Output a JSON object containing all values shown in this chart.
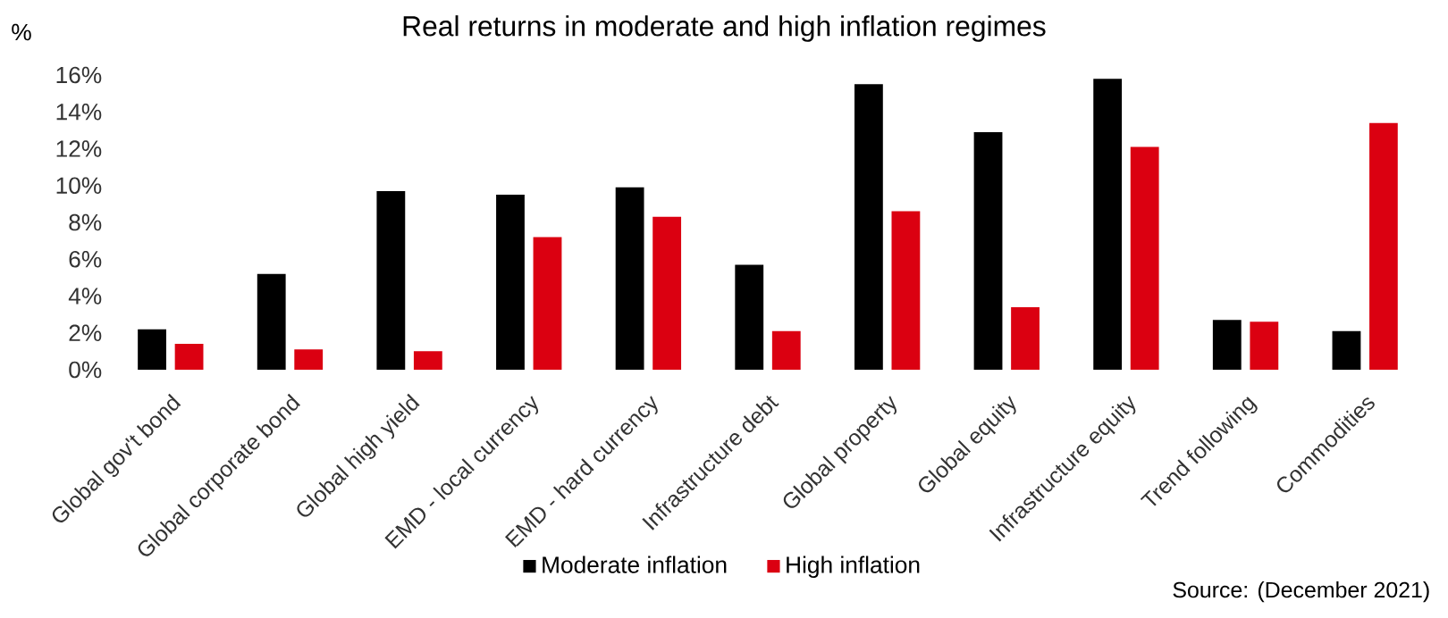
{
  "chart_data": {
    "type": "bar",
    "title": "Real returns in moderate and high inflation regimes",
    "ylabel": "%",
    "categories": [
      "Global gov't bond",
      "Global corporate bond",
      "Global high yield",
      "EMD - local currency",
      "EMD - hard currency",
      "Infrastructure debt",
      "Global property",
      "Global equity",
      "Infrastructure equity",
      "Trend following",
      "Commodities"
    ],
    "series": [
      {
        "name": "Moderate inflation",
        "color": "#000000",
        "values": [
          2.2,
          5.2,
          9.7,
          9.5,
          9.9,
          5.7,
          15.5,
          12.9,
          15.8,
          2.7,
          2.1
        ]
      },
      {
        "name": "High inflation",
        "color": "#db0011",
        "values": [
          1.4,
          1.1,
          1.0,
          7.2,
          8.3,
          2.1,
          8.6,
          3.4,
          12.1,
          2.6,
          13.4
        ]
      }
    ],
    "ylim": [
      0,
      16
    ],
    "yticks": [
      {
        "value": 0,
        "label": "0%"
      },
      {
        "value": 2,
        "label": "2%"
      },
      {
        "value": 4,
        "label": "4%"
      },
      {
        "value": 6,
        "label": "6%"
      },
      {
        "value": 8,
        "label": "8%"
      },
      {
        "value": 10,
        "label": "10%"
      },
      {
        "value": 12,
        "label": "12%"
      },
      {
        "value": 14,
        "label": "14%"
      },
      {
        "value": 16,
        "label": "16%"
      }
    ],
    "grid": false,
    "legend": "bottom",
    "annotations": [
      "Source: (December 2021)"
    ]
  }
}
